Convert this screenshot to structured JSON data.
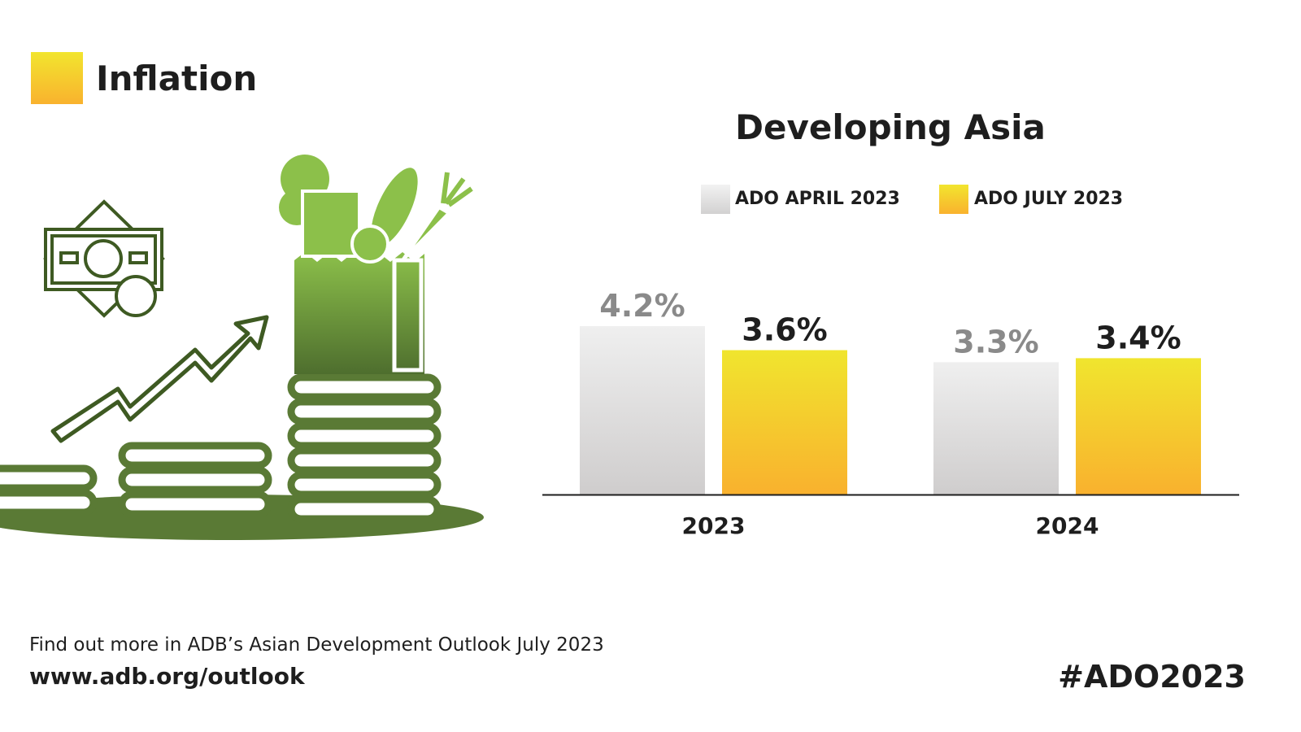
{
  "header": {
    "title": "Inflation"
  },
  "footer": {
    "text": "Find out more in ADB’s Asian Development Outlook July 2023",
    "url": "www.adb.org/outlook",
    "hashtag": "#ADO2023"
  },
  "colors": {
    "april": "#e0dfdf",
    "july": "#f5c72e",
    "illustration": "#5a7a35"
  },
  "chart_data": {
    "type": "bar",
    "title": "Developing Asia",
    "categories": [
      "2023",
      "2024"
    ],
    "series": [
      {
        "name": "ADO APRIL 2023",
        "values": [
          4.2,
          3.3
        ],
        "labels": [
          "4.2%",
          "3.3%"
        ]
      },
      {
        "name": "ADO JULY 2023",
        "values": [
          3.6,
          3.4
        ],
        "labels": [
          "3.6%",
          "3.4%"
        ]
      }
    ],
    "unit": "%",
    "grid": false,
    "legend": "top"
  }
}
